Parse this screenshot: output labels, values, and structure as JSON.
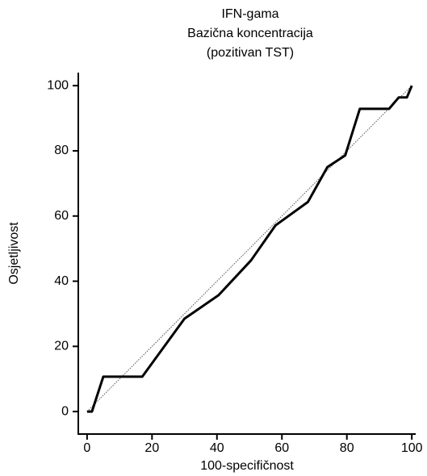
{
  "chart_data": {
    "type": "line",
    "title": [
      "IFN-gama",
      "Bazična koncentracija",
      "(pozitivan TST)"
    ],
    "x_label": "100-specifičnost",
    "y_label": "Osjetljivost",
    "series": [
      {
        "color": "#000000",
        "x": [
          0,
          1.5,
          5,
          17,
          30,
          40.5,
          50.5,
          58,
          68,
          74,
          79.5,
          84,
          93,
          96,
          98.5,
          100
        ],
        "values": [
          0,
          0,
          10.7,
          10.7,
          28.5,
          35.7,
          46.4,
          57.1,
          64.3,
          75,
          78.6,
          92.9,
          92.9,
          96.4,
          96.4,
          100
        ]
      }
    ],
    "xlim": [
      -2.7,
      101.2
    ],
    "ylim": [
      -6.9,
      104
    ],
    "xticks": [
      0,
      20,
      40,
      60,
      80,
      100
    ],
    "yticks": [
      0,
      20,
      40,
      60,
      80,
      100
    ],
    "diagonal": true
  }
}
